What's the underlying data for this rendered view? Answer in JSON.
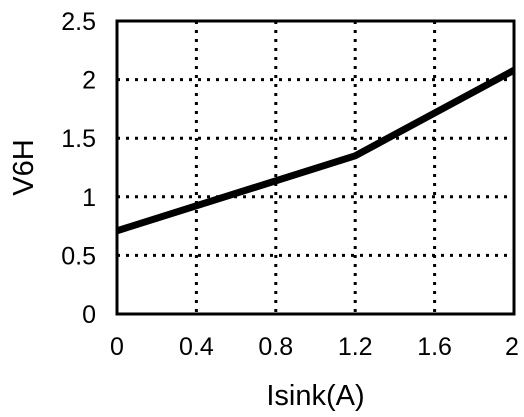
{
  "chart_data": {
    "type": "line",
    "title": "",
    "xlabel": "Isink(A)",
    "ylabel": "V6H",
    "xlim": [
      0,
      2
    ],
    "ylim": [
      0,
      2.5
    ],
    "x_ticks": [
      "0",
      "0.4",
      "0.8",
      "1.2",
      "1.6",
      "2"
    ],
    "y_ticks": [
      "0",
      "0.5",
      "1",
      "1.5",
      "2",
      "2.5"
    ],
    "grid": true,
    "grid_style": "dotted",
    "legend": "none",
    "series": [
      {
        "x": [
          0,
          1.2,
          2
        ],
        "y": [
          0.71,
          1.35,
          2.08
        ],
        "color": "#000000"
      }
    ]
  }
}
